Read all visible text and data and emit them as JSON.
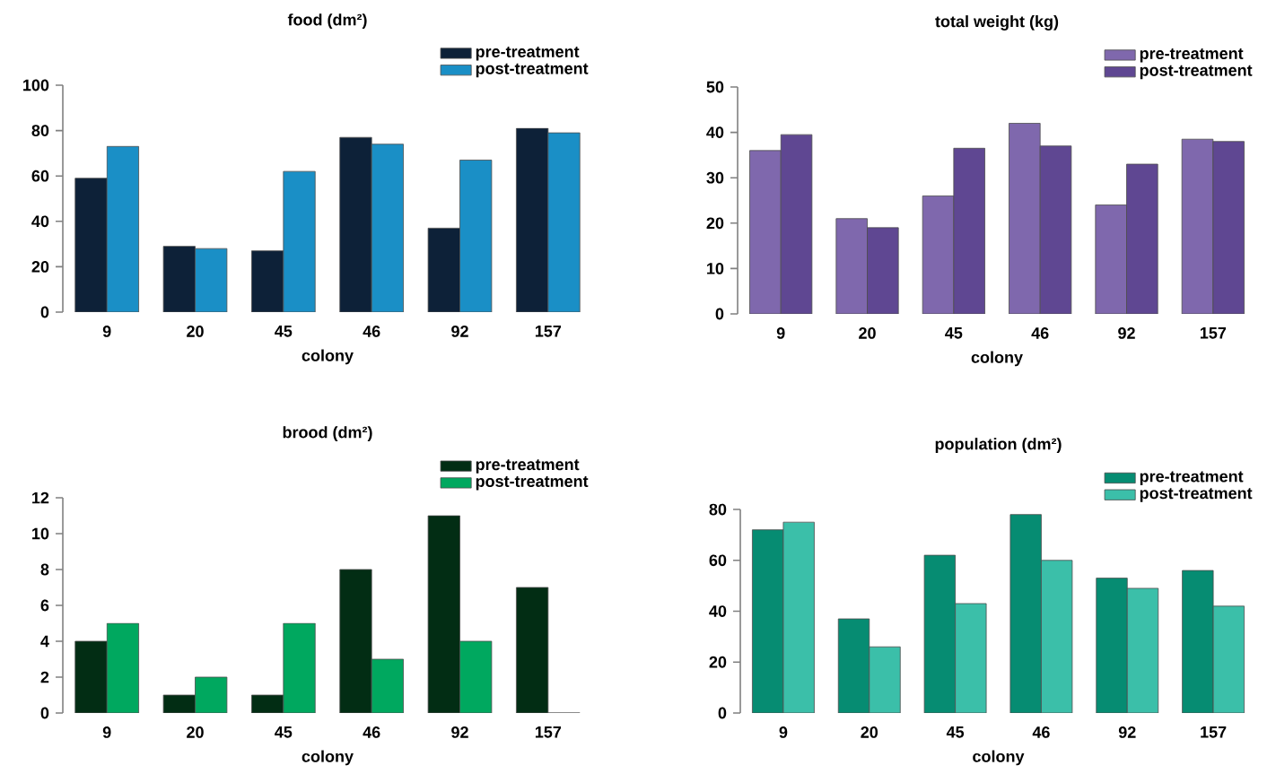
{
  "chart_data": [
    {
      "type": "bar",
      "title": "food (dm²)",
      "xlabel": "colony",
      "categories": [
        "9",
        "20",
        "45",
        "46",
        "92",
        "157"
      ],
      "series": [
        {
          "name": "pre-treatment",
          "color": "#0d2138",
          "values": [
            59,
            29,
            27,
            77,
            37,
            81
          ]
        },
        {
          "name": "post-treatment",
          "color": "#1a8fc6",
          "values": [
            73,
            28,
            62,
            74,
            67,
            79
          ]
        }
      ],
      "ylim": [
        0,
        100
      ],
      "yticks": [
        0,
        20,
        40,
        60,
        80,
        100
      ],
      "legend": "top right"
    },
    {
      "type": "bar",
      "title": "total weight (kg)",
      "xlabel": "colony",
      "categories": [
        "9",
        "20",
        "45",
        "46",
        "92",
        "157"
      ],
      "series": [
        {
          "name": "pre-treatment",
          "color": "#7f68ad",
          "values": [
            36,
            21,
            26,
            42,
            24,
            38.5
          ]
        },
        {
          "name": "post-treatment",
          "color": "#5f4792",
          "values": [
            39.5,
            19,
            36.5,
            37,
            33,
            38
          ]
        }
      ],
      "ylim": [
        0,
        50
      ],
      "yticks": [
        0,
        10,
        20,
        30,
        40,
        50
      ],
      "legend": "top right"
    },
    {
      "type": "bar",
      "title": "brood (dm²)",
      "xlabel": "colony",
      "categories": [
        "9",
        "20",
        "45",
        "46",
        "92",
        "157"
      ],
      "series": [
        {
          "name": "pre-treatment",
          "color": "#022d14",
          "values": [
            4,
            1,
            1,
            8,
            11,
            7
          ]
        },
        {
          "name": "post-treatment",
          "color": "#00a85f",
          "values": [
            5,
            2,
            5,
            3,
            4,
            0
          ]
        }
      ],
      "ylim": [
        0,
        12
      ],
      "yticks": [
        0,
        2,
        4,
        6,
        8,
        10,
        12
      ],
      "legend": "top right"
    },
    {
      "type": "bar",
      "title": "population (dm²)",
      "xlabel": "colony",
      "categories": [
        "9",
        "20",
        "45",
        "46",
        "92",
        "157"
      ],
      "series": [
        {
          "name": "pre-treatment",
          "color": "#068c72",
          "values": [
            72,
            37,
            62,
            78,
            53,
            56
          ]
        },
        {
          "name": "post-treatment",
          "color": "#3bbfa9",
          "values": [
            75,
            26,
            43,
            60,
            49,
            42
          ]
        }
      ],
      "ylim": [
        0,
        80
      ],
      "yticks": [
        0,
        20,
        40,
        60,
        80
      ],
      "legend": "top right"
    }
  ]
}
